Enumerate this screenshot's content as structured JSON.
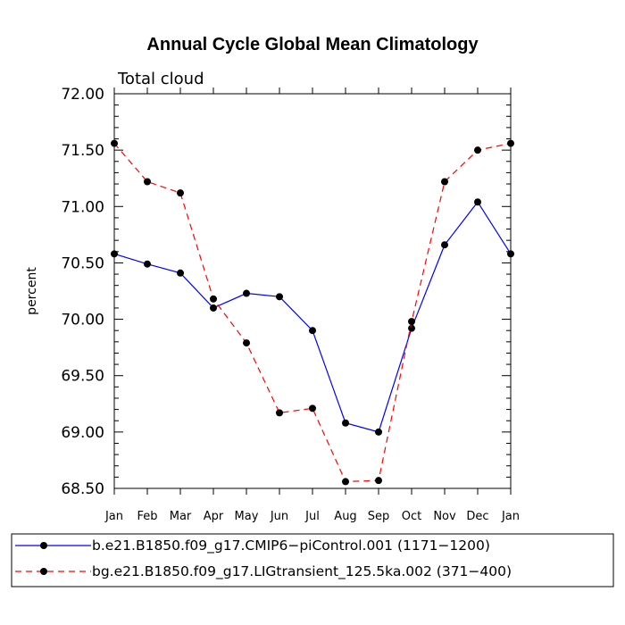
{
  "chart_data": {
    "type": "line",
    "title": "Annual Cycle Global Mean Climatology",
    "subtitle": "Total cloud",
    "xlabel": "",
    "ylabel": "percent",
    "categories": [
      "Jan",
      "Feb",
      "Mar",
      "Apr",
      "May",
      "Jun",
      "Jul",
      "Aug",
      "Sep",
      "Oct",
      "Nov",
      "Dec",
      "Jan"
    ],
    "ylim": [
      68.5,
      72.0
    ],
    "yticks": [
      68.5,
      69.0,
      69.5,
      70.0,
      70.5,
      71.0,
      71.5,
      72.0
    ],
    "ytick_labels": [
      "68.50",
      "69.00",
      "69.50",
      "70.00",
      "70.50",
      "71.00",
      "71.50",
      "72.00"
    ],
    "grid": false,
    "legend_position": "bottom",
    "series": [
      {
        "name": "b.e21.B1850.f09_g17.CMIP6−piControl.001 (1171−1200)",
        "values": [
          70.58,
          70.49,
          70.41,
          70.1,
          70.23,
          70.2,
          69.9,
          69.08,
          69.0,
          69.92,
          70.66,
          71.04,
          70.58
        ],
        "color": "#0000ff",
        "line_style": "solid",
        "marker": "filled-circle",
        "marker_color": "#000000"
      },
      {
        "name": "bg.e21.B1850.f09_g17.LIGtransient_125.5ka.002 (371−400)",
        "values": [
          71.56,
          71.22,
          71.12,
          70.18,
          69.79,
          69.17,
          69.21,
          68.56,
          68.57,
          69.98,
          71.22,
          71.5,
          71.56
        ],
        "color": "#ff0000",
        "line_style": "dashed",
        "marker": "filled-circle",
        "marker_color": "#000000"
      }
    ]
  }
}
